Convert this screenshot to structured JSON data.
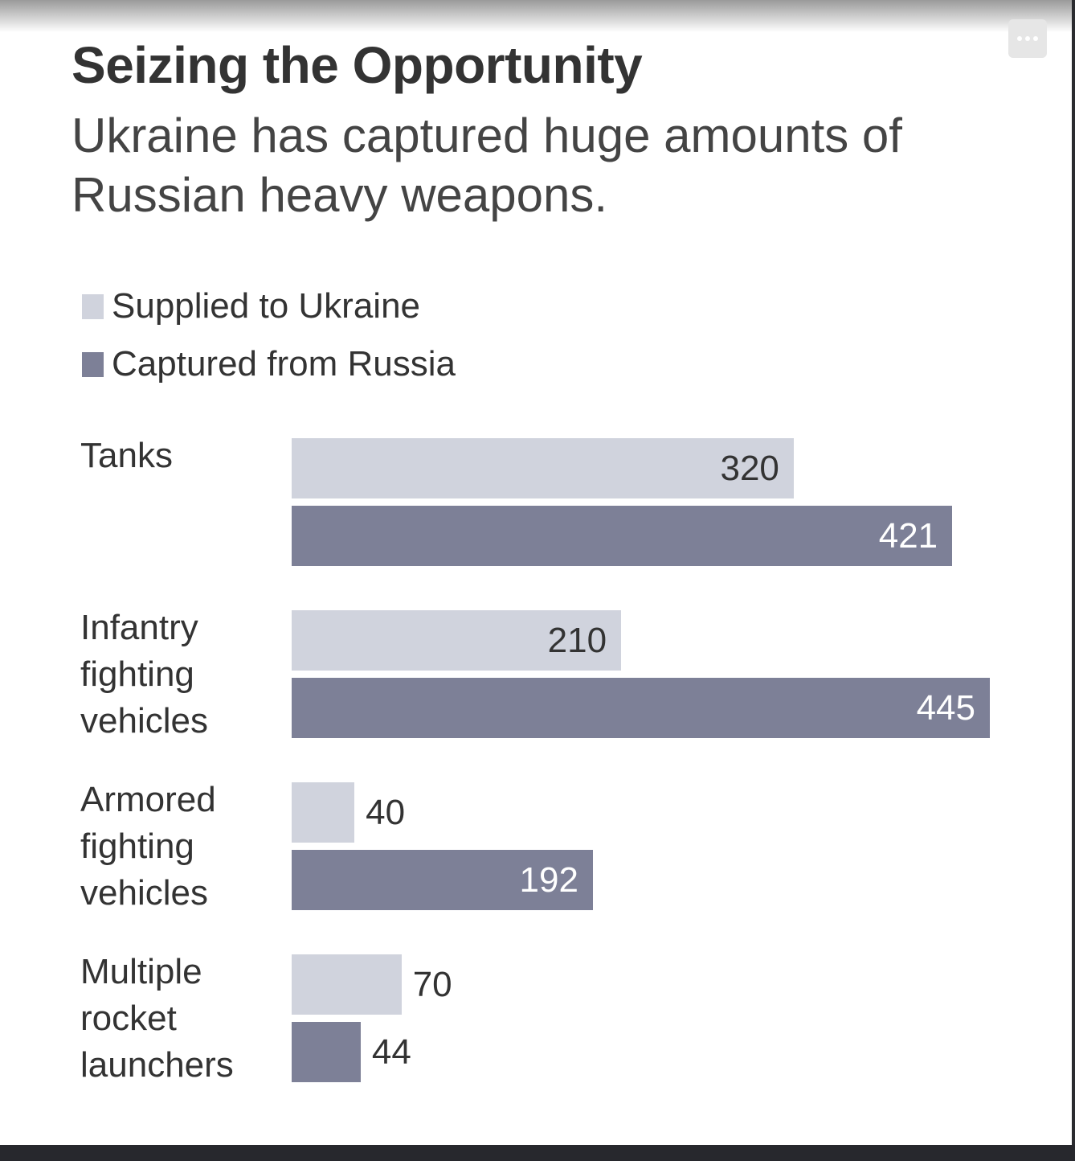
{
  "chart_data": {
    "type": "bar",
    "orientation": "horizontal",
    "title": "Seizing the Opportunity",
    "subtitle": "Ukraine has captured huge amounts of Russian heavy weapons.",
    "categories": [
      "Tanks",
      "Infantry fighting vehicles",
      "Armored fighting vehicles",
      "Multiple rocket launchers"
    ],
    "category_labels": [
      "Tanks",
      "Infantry\nfighting\nvehicles",
      "Armored\nfighting\nvehicles",
      "Multiple\nrocket\nlaunchers"
    ],
    "series": [
      {
        "name": "Supplied to Ukraine",
        "color": "#d0d3dd",
        "label_color": "#333333",
        "values": [
          320,
          210,
          40,
          70
        ]
      },
      {
        "name": "Captured from Russia",
        "color": "#7d8097",
        "label_color": "#ffffff",
        "values": [
          421,
          445,
          192,
          44
        ]
      }
    ],
    "legend_position": "top-left",
    "grid": false,
    "xlim": [
      0,
      445
    ]
  }
}
